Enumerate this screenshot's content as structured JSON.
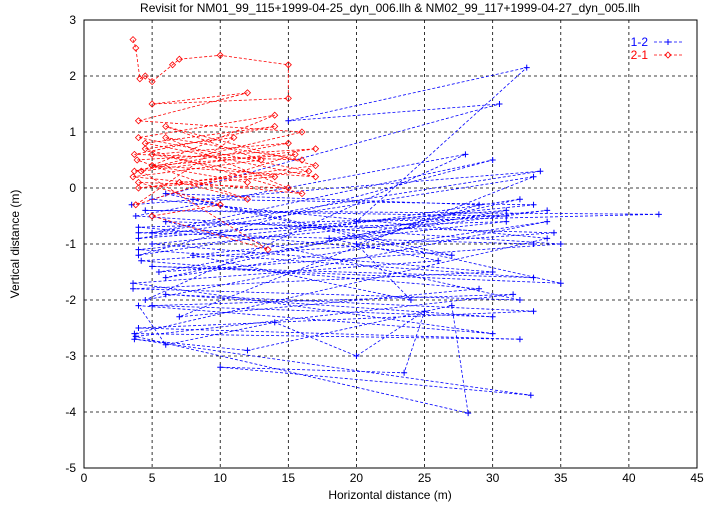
{
  "chart_data": {
    "type": "line",
    "title": "Revisit for NM01_99_115+1999-04-25_dyn_006.llh & NM02_99_117+1999-04-27_dyn_005.llh",
    "xlabel": "Horizontal distance (m)",
    "ylabel": "Vertical distance (m)",
    "xlim": [
      0,
      45
    ],
    "ylim": [
      -5,
      3
    ],
    "xticks": [
      0,
      5,
      10,
      15,
      20,
      25,
      30,
      35,
      40,
      45
    ],
    "yticks": [
      -5,
      -4,
      -3,
      -2,
      -1,
      0,
      1,
      2,
      3
    ],
    "grid": true,
    "legend_position": "top-right",
    "series": [
      {
        "name": "1-2",
        "color": "#0000ff",
        "marker": "plus",
        "x": [
          3.5,
          33.5,
          5,
          30,
          4,
          32,
          6,
          34,
          4.5,
          28,
          3.8,
          35,
          5.5,
          31,
          4,
          33,
          7,
          29,
          4.2,
          34.5,
          6,
          32,
          3.6,
          30,
          5,
          33,
          8,
          27,
          4,
          31,
          4.5,
          42.2,
          20,
          32.5,
          15,
          30.5,
          5,
          34,
          3.7,
          32,
          4,
          33,
          6,
          30,
          5,
          31.5,
          3.8,
          28.2,
          27,
          12,
          3.7,
          32.8,
          10,
          23.5,
          25,
          20,
          14,
          6,
          4,
          30,
          3.6,
          26,
          18,
          34,
          4,
          33,
          5,
          35,
          6,
          29,
          20,
          24,
          8,
          31,
          4,
          33
        ],
        "y": [
          -0.3,
          0.3,
          -0.8,
          0.5,
          -1.2,
          -0.2,
          -1.6,
          -0.6,
          -2.0,
          0.6,
          -0.5,
          -1.0,
          -1.5,
          -0.4,
          -0.9,
          0.2,
          -2.3,
          -1.8,
          -1.3,
          -0.8,
          -0.6,
          -2.0,
          -1.8,
          -1.5,
          -1.0,
          -0.3,
          -0.2,
          -1.2,
          -0.7,
          -0.5,
          -0.4,
          -0.47,
          -0.6,
          2.15,
          1.2,
          1.5,
          -0.2,
          -0.9,
          -2.6,
          -2.7,
          -2.5,
          -2.2,
          -1.9,
          -2.3,
          -2.1,
          -1.9,
          -2.65,
          -4.02,
          -2.1,
          -2.9,
          -2.7,
          -3.7,
          -3.2,
          -3.3,
          -2.2,
          -3.0,
          -2.4,
          -2.8,
          -2.1,
          -2.6,
          -1.7,
          -1.3,
          -0.9,
          -0.4,
          -1.1,
          -1.6,
          -1.4,
          -1.7,
          -0.1,
          -0.3,
          -1.0,
          -2.0,
          -1.2,
          -0.6,
          -0.8,
          -1.0
        ]
      },
      {
        "name": "2-1",
        "color": "#ff0000",
        "marker": "diamond",
        "x": [
          3.6,
          3.8,
          4.1,
          4.5,
          5,
          6.5,
          7,
          10,
          15,
          15,
          5,
          12,
          4,
          16,
          3.7,
          15,
          5,
          14,
          4,
          17,
          6,
          13,
          3.6,
          16,
          4.5,
          11,
          3.8,
          15.5,
          5,
          14,
          4,
          16.5,
          7,
          12,
          3.9,
          17,
          4.2,
          13.5,
          5,
          10,
          4,
          15,
          6,
          16,
          3.7,
          14,
          4.5,
          17,
          5,
          12
        ],
        "y": [
          2.65,
          2.5,
          1.95,
          2.0,
          1.9,
          2.2,
          2.3,
          2.37,
          2.2,
          1.6,
          1.5,
          1.7,
          1.2,
          1.0,
          0.3,
          0.8,
          0.6,
          0.2,
          0.0,
          0.4,
          1.1,
          0.5,
          0.2,
          -0.1,
          0.7,
          0.9,
          -0.3,
          0.6,
          0.4,
          1.3,
          0.9,
          0.3,
          0.1,
          -0.2,
          0.5,
          0.7,
          0.3,
          -1.1,
          -0.5,
          -0.3,
          0.1,
          0.0,
          0.9,
          0.5,
          0.6,
          1.1,
          0.8,
          0.2,
          0.4,
          0.1
        ]
      }
    ]
  }
}
